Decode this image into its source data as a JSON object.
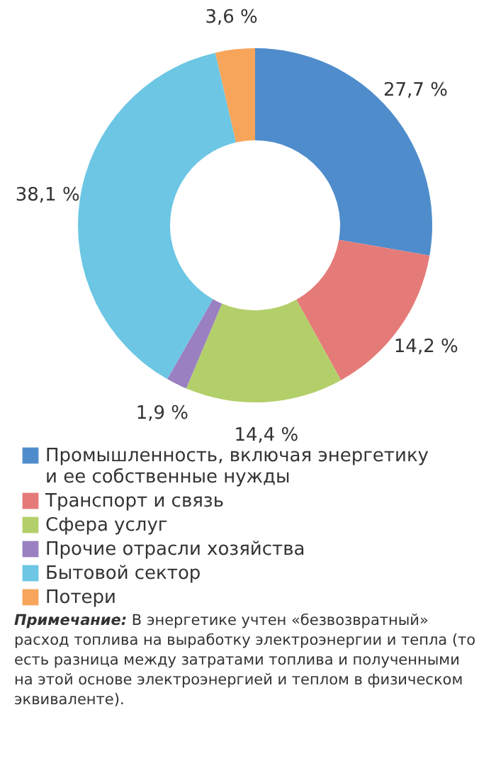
{
  "chart_data": {
    "type": "donut",
    "categories": [
      "Промышленность, включая энергетику и ее собственные нужды",
      "Транспорт и связь",
      "Сфера услуг",
      "Прочие отрасли хозяйства",
      "Бытовой сектор",
      "Потери"
    ],
    "values": [
      27.7,
      14.2,
      14.4,
      1.9,
      38.1,
      3.6
    ],
    "colors": [
      "#4f8ccc",
      "#e57b78",
      "#b3cf6a",
      "#9a80c0",
      "#6cc6e4",
      "#f6a55a"
    ],
    "value_labels": [
      "27,7 %",
      "14,2 %",
      "14,4 %",
      "1,9 %",
      "38,1 %",
      "3,6 %"
    ],
    "legend": "bottom",
    "annotations": [
      "Примечание: В энергетике учтен «безвозвратный» расход топлива на выработку электроэнергии и тепла (то есть разница между затратами топлива и полученными на этой основе электроэнергией и теплом в физическом эквиваленте)."
    ]
  }
}
